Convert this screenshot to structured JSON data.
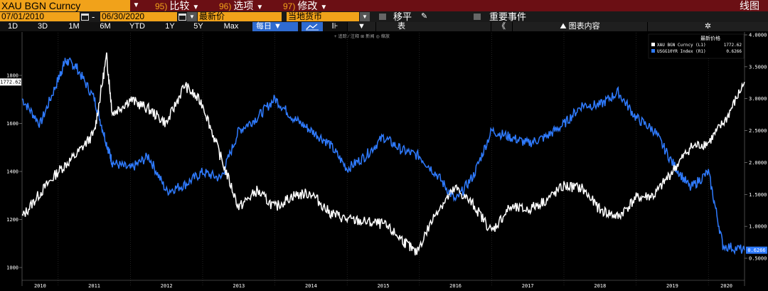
{
  "header": {
    "ticker": "XAU BGN Curncy",
    "menus": [
      {
        "num": "95)",
        "label": "比较"
      },
      {
        "num": "96)",
        "label": "选项"
      },
      {
        "num": "97)",
        "label": "修改"
      }
    ],
    "chart_type": "线图"
  },
  "controls": {
    "start_date": "07/01/2010",
    "end_date": "06/30/2020",
    "field": "最新价",
    "currency": "当地货币",
    "move_label": "移平",
    "events_label": "重要事件"
  },
  "periods": [
    "1D",
    "3D",
    "1M",
    "6M",
    "YTD",
    "1Y",
    "5Y",
    "Max"
  ],
  "frequency": "每日",
  "bar_icon_label": "Ⅰ⊦",
  "table_label": "表",
  "collapse_label": "《",
  "chart_content_label": "图表内容",
  "gear_icon": "gear-icon",
  "toolbar_hint": "+ 追踪  ⁄ 注释  ⊞ 新闻  ◎ 缩放",
  "legend": {
    "title": "最新价格",
    "items": [
      {
        "name": "XAU BGN Curncy (L1)",
        "value": "1772.62",
        "color": "#ffffff"
      },
      {
        "name": "USGG10YR Index (R1)",
        "value": "0.6266",
        "color": "#2f7bff"
      }
    ]
  },
  "chart_data": {
    "type": "line",
    "x_tick_labels": [
      "2010",
      "2011",
      "2012",
      "2013",
      "2014",
      "2015",
      "2016",
      "2017",
      "2018",
      "2019",
      "2020"
    ],
    "left_axis": {
      "ticks": [
        "1000",
        "1200",
        "1400",
        "1600",
        "1800"
      ],
      "ylim": [
        1000,
        1900
      ],
      "last_label": "1772.62"
    },
    "right_axis": {
      "ticks": [
        "0.5000",
        "1.0000",
        "1.5000",
        "2.0000",
        "2.5000",
        "3.0000",
        "3.5000",
        "4.0000"
      ],
      "ylim": [
        0.5,
        4.0
      ],
      "last_label": "0.6266"
    },
    "series": [
      {
        "name": "XAU BGN Curncy (L1)",
        "color": "#ffffff",
        "x": [
          2010.5,
          2010.75,
          2011.0,
          2011.25,
          2011.5,
          2011.67,
          2011.75,
          2012.0,
          2012.25,
          2012.5,
          2012.75,
          2013.0,
          2013.25,
          2013.5,
          2013.75,
          2014.0,
          2014.25,
          2014.5,
          2014.75,
          2015.0,
          2015.25,
          2015.5,
          2015.75,
          2015.95,
          2016.25,
          2016.5,
          2016.75,
          2017.0,
          2017.25,
          2017.5,
          2017.75,
          2018.0,
          2018.25,
          2018.5,
          2018.75,
          2019.0,
          2019.25,
          2019.5,
          2019.75,
          2020.0,
          2020.25,
          2020.5
        ],
        "y": [
          1210,
          1310,
          1400,
          1470,
          1560,
          1880,
          1640,
          1700,
          1660,
          1600,
          1760,
          1680,
          1460,
          1250,
          1320,
          1250,
          1300,
          1310,
          1230,
          1200,
          1190,
          1180,
          1120,
          1060,
          1240,
          1330,
          1260,
          1150,
          1250,
          1240,
          1280,
          1340,
          1330,
          1240,
          1210,
          1290,
          1300,
          1400,
          1500,
          1520,
          1620,
          1772.62
        ]
      },
      {
        "name": "USGG10YR Index (R1)",
        "color": "#2f7bff",
        "x": [
          2010.5,
          2010.75,
          2011.0,
          2011.1,
          2011.25,
          2011.5,
          2011.67,
          2011.75,
          2012.0,
          2012.25,
          2012.5,
          2012.75,
          2013.0,
          2013.25,
          2013.5,
          2013.75,
          2014.0,
          2014.25,
          2014.5,
          2014.75,
          2015.0,
          2015.25,
          2015.5,
          2015.75,
          2016.0,
          2016.25,
          2016.5,
          2016.75,
          2017.0,
          2017.25,
          2017.5,
          2017.75,
          2018.0,
          2018.25,
          2018.5,
          2018.75,
          2019.0,
          2019.25,
          2019.5,
          2019.75,
          2020.0,
          2020.2,
          2020.5
        ],
        "y": [
          3.0,
          2.6,
          3.3,
          3.6,
          3.5,
          3.0,
          2.3,
          2.0,
          1.9,
          2.1,
          1.55,
          1.65,
          1.85,
          1.75,
          2.5,
          2.7,
          3.0,
          2.7,
          2.5,
          2.3,
          1.9,
          2.1,
          2.4,
          2.2,
          2.1,
          1.8,
          1.4,
          1.8,
          2.5,
          2.4,
          2.3,
          2.4,
          2.6,
          2.9,
          2.9,
          3.1,
          2.7,
          2.5,
          2.0,
          1.6,
          1.85,
          0.7,
          0.6266
        ]
      }
    ]
  }
}
